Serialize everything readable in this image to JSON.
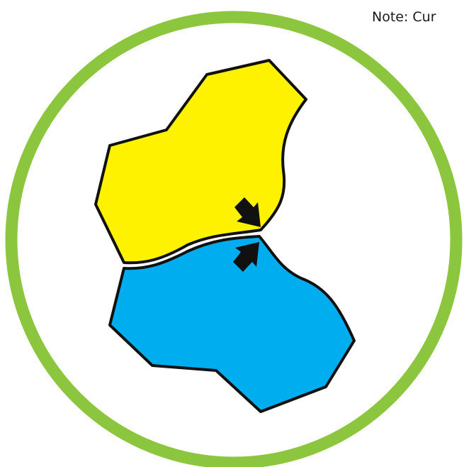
{
  "note": "Note: Cur"
}
